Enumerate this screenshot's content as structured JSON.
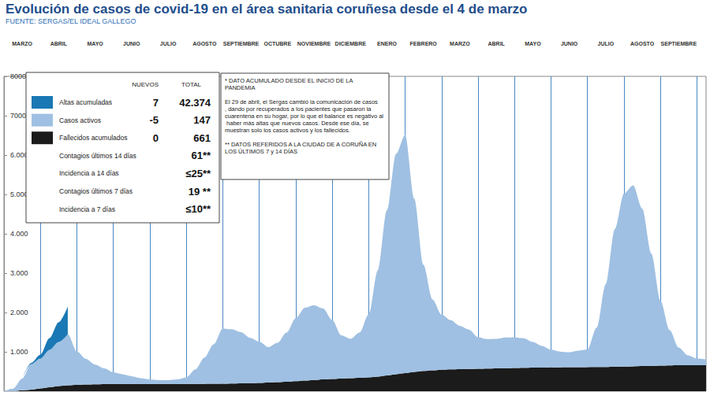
{
  "chart_data": {
    "type": "area",
    "title": "Evolución de casos de covid-19 en el área sanitaria coruñesa desde el 4 de marzo",
    "subtitle": "FUENTE: SERGAS/EL IDEAL GALLEGO",
    "stacked": true,
    "grid": true,
    "legend": "upper left",
    "categories": [
      null,
      null,
      "MARZO",
      null,
      null,
      null,
      "ABRIL",
      null,
      null,
      null,
      "MAYO",
      null,
      null,
      null,
      "JUNIO",
      null,
      null,
      null,
      "JULIO",
      null,
      null,
      null,
      "AGOSTO",
      null,
      null,
      null,
      "SEPTIEMBRE",
      null,
      null,
      null,
      "OCTUBRE",
      null,
      null,
      null,
      "NOVIEMBRE",
      null,
      null,
      null,
      "DICIEMBRE",
      null,
      null,
      null,
      "ENERO",
      null,
      null,
      null,
      "FEBRERO",
      null,
      null,
      null,
      "MARZO",
      null,
      null,
      null,
      "ABRIL",
      null,
      null,
      null,
      "MAYO",
      null,
      null,
      null,
      "JUNIO",
      null,
      null,
      null,
      "JULIO",
      null,
      null,
      null,
      "AGOSTO",
      null,
      null,
      null,
      "SEPTIEMBRE",
      null,
      null,
      null
    ],
    "series": [
      {
        "name": "Fallecidos acumulados",
        "color": "#1b1b1b",
        "values": [
          0,
          5,
          20,
          40,
          70,
          100,
          130,
          150,
          160,
          170,
          175,
          180,
          180,
          180,
          180,
          180,
          180,
          180,
          180,
          180,
          182,
          184,
          186,
          188,
          190,
          195,
          200,
          205,
          210,
          220,
          230,
          240,
          255,
          270,
          285,
          300,
          310,
          320,
          330,
          340,
          350,
          370,
          400,
          430,
          460,
          490,
          515,
          530,
          545,
          555,
          560,
          565,
          570,
          575,
          580,
          585,
          590,
          595,
          600,
          602,
          605,
          607,
          609,
          610,
          612,
          614,
          617,
          620,
          625,
          632,
          640,
          645,
          650,
          655,
          658,
          660,
          661,
          661
        ]
      },
      {
        "name": "Casos activos",
        "color": "#9fc0e2",
        "values": [
          0,
          60,
          300,
          650,
          760,
          950,
          1120,
          1300,
          850,
          650,
          500,
          400,
          300,
          250,
          200,
          150,
          120,
          100,
          100,
          120,
          170,
          370,
          670,
          1000,
          1400,
          1380,
          1300,
          1150,
          1050,
          900,
          1000,
          1250,
          1600,
          1850,
          1900,
          1800,
          1500,
          1100,
          1000,
          1150,
          1600,
          2700,
          4200,
          5600,
          6050,
          4400,
          2700,
          1800,
          1400,
          1250,
          1100,
          1000,
          800,
          750,
          750,
          780,
          780,
          750,
          650,
          550,
          450,
          400,
          380,
          420,
          450,
          1000,
          2100,
          3500,
          4400,
          4600,
          4000,
          2850,
          1650,
          900,
          450,
          250,
          170,
          147
        ]
      },
      {
        "name": "Altas acumuladas",
        "color": "#1a78b4",
        "values": [
          null,
          null,
          0,
          30,
          100,
          300,
          500,
          700,
          null,
          null,
          null,
          null,
          null,
          null,
          null,
          null,
          null,
          null,
          null,
          null,
          null,
          null,
          null,
          null,
          null,
          null,
          null,
          null,
          null,
          null,
          null,
          null,
          null,
          null,
          null,
          null,
          null,
          null,
          null,
          null,
          null,
          null,
          null,
          null,
          null,
          null,
          null,
          null,
          null,
          null,
          null,
          null,
          null,
          null,
          null,
          null,
          null,
          null,
          null,
          null,
          null,
          null,
          null,
          null,
          null,
          null,
          null,
          null,
          null,
          null,
          null,
          null,
          null,
          null,
          null,
          null,
          null,
          null
        ]
      }
    ],
    "ylim": [
      0,
      8000
    ],
    "yticks": [
      {
        "value": 1000,
        "label": "1.000"
      },
      {
        "value": 2000,
        "label": "2.000"
      },
      {
        "value": 3000,
        "label": "3.000"
      },
      {
        "value": 4000,
        "label": "4.000"
      },
      {
        "value": 5000,
        "label": "5.000"
      },
      {
        "value": 6000,
        "label": "6.000"
      },
      7000,
      8000
    ],
    "summary": {
      "headers": [
        "NUEVOS",
        "TOTAL"
      ],
      "rows": [
        [
          "Altas acumuladas",
          "7",
          "42.374"
        ],
        [
          "Casos activos",
          "-5",
          "147"
        ],
        [
          "Fallecidos acumulados",
          "0",
          "661"
        ],
        [
          "Contagios últimos 14 días",
          null,
          "61**"
        ],
        [
          "Incidencia a 14 días",
          null,
          "≤25**"
        ],
        [
          "Contagios últimos 7 días",
          null,
          "19 **"
        ],
        [
          "Incidencia a 7 días",
          null,
          "≤10**"
        ]
      ]
    },
    "notes": [
      "* DATO ACUMULADO DESDE EL INICIO DE LA PANDEMIA",
      "El 29 de abril, el Sergas cambió la comunicación de casos, dando por recuperados a los pacientes que pasaron la cuarentena en su hogar, por lo que el balance es negativo al haber más altas que nuevos casos. Desde ese día, se muestran solo los casos activos y los fallecidos.",
      "** DATOS REFERIDOS A LA CIUDAD DE A CORUÑA EN LOS ÚLTIMOS 7 y 14 DÍAS"
    ]
  }
}
